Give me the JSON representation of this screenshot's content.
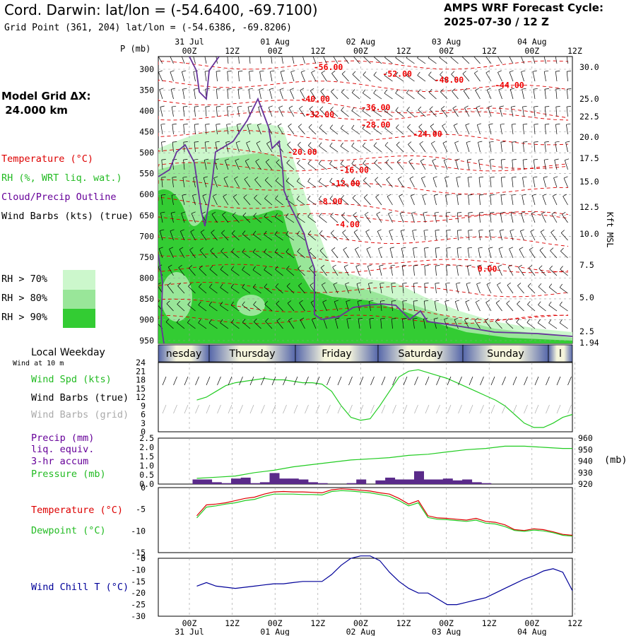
{
  "header": {
    "title": "Cord. Darwin:  lat/lon = (-54.6400, -69.7100)",
    "grid_point": "Grid Point (361, 204) lat/lon = (-54.6386, -69.8206)",
    "cycle_line1": "AMPS WRF Forecast Cycle:",
    "cycle_line2": "2025-07-30 / 12  Z",
    "model_grid": "Model Grid ΔX:",
    "model_dx": " 24.000 km"
  },
  "legend": {
    "temperature": "Temperature (°C)",
    "rh": "RH (%, WRT liq. wat.)",
    "cloud": "Cloud/Precip Outline",
    "wind": "Wind Barbs (kts) (true)",
    "rh70": "RH > 70%",
    "rh80": "RH > 80%",
    "rh90": "RH > 90%",
    "colors": {
      "rh70": "#ccf7cc",
      "rh80": "#99e699",
      "rh90": "#33cc33"
    }
  },
  "panels": {
    "local_weekday": "Local Weekday",
    "wind_at_10m": "Wind at 10 m",
    "wind_spd": "Wind Spd (kts)",
    "wind_barbs_true": "Wind Barbs (true)",
    "wind_barbs_grid": "Wind Barbs (grid)",
    "precip": "Precip (mm)",
    "liq": "liq. equiv.",
    "accum": "3-hr accum",
    "pressure": "Pressure (mb)",
    "mb": "(mb)",
    "temperature": "Temperature (°C)",
    "dewpoint": "Dewpoint (°C)",
    "windchill": "Wind Chill T (°C)",
    "p_axis_label": "P (mb)",
    "kft_label": "Kft MSL"
  },
  "chart_data": [
    {
      "type": "heatmap",
      "time_ticks": [
        "00Z",
        "12Z",
        "00Z",
        "12Z",
        "00Z",
        "12Z",
        "00Z",
        "12Z",
        "00Z",
        "12Z"
      ],
      "date_ticks": [
        "31 Jul",
        "01 Aug",
        "02 Aug",
        "03 Aug",
        "04 Aug"
      ],
      "pressure_ticks": [
        300,
        350,
        400,
        450,
        500,
        550,
        600,
        650,
        700,
        750,
        800,
        850,
        900,
        950
      ],
      "kft_ticks": [
        "30.0",
        "25.0",
        "22.5",
        "20.0",
        "17.5",
        "15.0",
        "12.5",
        "10.0",
        "7.5",
        "5.0",
        "2.5",
        "1.94"
      ],
      "temperature_labels": [
        {
          "label": "-56.00",
          "t": 36,
          "p": 302
        },
        {
          "label": "-52.00",
          "t": 52,
          "p": 318
        },
        {
          "label": "-48.00",
          "t": 64,
          "p": 332
        },
        {
          "label": "-44.00",
          "t": 78,
          "p": 345
        },
        {
          "label": "-40.00",
          "t": 33,
          "p": 378
        },
        {
          "label": "-36.00",
          "t": 47,
          "p": 398
        },
        {
          "label": "-32.00",
          "t": 34,
          "p": 415
        },
        {
          "label": "-28.00",
          "t": 47,
          "p": 440
        },
        {
          "label": "-24.00",
          "t": 59,
          "p": 462
        },
        {
          "label": "-20.00",
          "t": 30,
          "p": 505
        },
        {
          "label": "-16.00",
          "t": 42,
          "p": 548
        },
        {
          "label": "-12.00",
          "t": 40,
          "p": 580
        },
        {
          "label": "-8.00",
          "t": 37,
          "p": 623
        },
        {
          "label": "-4.00",
          "t": 41,
          "p": 678
        },
        {
          "label": "0.00",
          "t": 74,
          "p": 785
        }
      ]
    },
    {
      "type": "line",
      "title": "Wind Spd (kts)",
      "ylim": [
        0,
        24
      ],
      "yticks": [
        0,
        3,
        6,
        9,
        12,
        15,
        18,
        21,
        24
      ],
      "series": [
        {
          "name": "Wind Spd (kts)",
          "color": "#22cc22",
          "x": [
            0,
            3,
            6,
            9,
            12,
            15,
            18,
            21,
            24,
            27,
            30,
            33,
            36,
            39,
            42,
            45,
            48,
            51,
            54,
            57,
            60,
            63,
            66,
            69,
            72,
            75,
            78,
            81,
            84,
            87,
            90,
            93,
            96,
            99,
            102,
            105,
            108,
            111,
            114,
            117
          ],
          "y": [
            11,
            12,
            14,
            16,
            17,
            17.5,
            18,
            18.5,
            18,
            18,
            17.5,
            17,
            17,
            16.5,
            14,
            9,
            5,
            4,
            4.5,
            9,
            14,
            19,
            21,
            21.5,
            20.5,
            19.5,
            18.5,
            17,
            15.5,
            14,
            12.5,
            11,
            9,
            6,
            3,
            1.5,
            1.5,
            3,
            5,
            6
          ]
        }
      ]
    },
    {
      "type": "bar",
      "title": "Precip (mm) / Pressure (mb)",
      "ylim": [
        0,
        2.5
      ],
      "yticks": [
        0.0,
        0.5,
        1.0,
        1.5,
        2.0,
        2.5
      ],
      "y2ticks": [
        920,
        930,
        940,
        950,
        960
      ],
      "precip_x": [
        0,
        3,
        6,
        9,
        12,
        15,
        18,
        21,
        24,
        27,
        30,
        33,
        36,
        39,
        42,
        45,
        48,
        51,
        54,
        57,
        60,
        63,
        66,
        69,
        72,
        75,
        78,
        81,
        84,
        87,
        90,
        93,
        96,
        99,
        102,
        105,
        108,
        111,
        114,
        117
      ],
      "precip": [
        0.25,
        0.25,
        0.1,
        0.05,
        0.3,
        0.35,
        0.05,
        0.1,
        0.6,
        0.3,
        0.3,
        0.25,
        0.1,
        0.05,
        0.0,
        0.0,
        0.05,
        0.25,
        0.0,
        0.2,
        0.35,
        0.25,
        0.25,
        0.7,
        0.25,
        0.25,
        0.3,
        0.2,
        0.25,
        0.1,
        0.05,
        0.0,
        0.0,
        0.0,
        0.0,
        0.0,
        0.0,
        0.0,
        0.0,
        0.0
      ],
      "pressure_x": [
        0,
        6,
        12,
        18,
        24,
        30,
        36,
        42,
        48,
        54,
        60,
        66,
        72,
        78,
        84,
        90,
        96,
        102,
        108,
        114,
        117
      ],
      "pressure": [
        925,
        926,
        927,
        930,
        932,
        935,
        937,
        939,
        941,
        942,
        943,
        945,
        946,
        948,
        950,
        951,
        953,
        953,
        952,
        951,
        951
      ]
    },
    {
      "type": "line",
      "title": "Temperature / Dewpoint (°C)",
      "ylim": [
        -15,
        0
      ],
      "yticks": [
        -15,
        -10,
        -5
      ],
      "series": [
        {
          "name": "Temperature (°C)",
          "color": "#dd0000",
          "x": [
            0,
            3,
            6,
            9,
            12,
            15,
            18,
            21,
            24,
            27,
            30,
            33,
            36,
            39,
            42,
            45,
            48,
            51,
            54,
            57,
            60,
            63,
            66,
            69,
            72,
            75,
            78,
            81,
            84,
            87,
            90,
            93,
            96,
            99,
            102,
            105,
            108,
            111,
            114,
            117
          ],
          "y": [
            -6.5,
            -4,
            -3.8,
            -3.5,
            -3,
            -2.5,
            -2.2,
            -1.5,
            -1,
            -0.9,
            -1,
            -1,
            -1.1,
            -1.2,
            -0.5,
            -0.3,
            -0.4,
            -0.6,
            -0.8,
            -1.2,
            -1.5,
            -2.5,
            -3.8,
            -3,
            -6.5,
            -7.0,
            -7.1,
            -7.3,
            -7.5,
            -7.1,
            -7.8,
            -8,
            -8.6,
            -9.7,
            -9.9,
            -9.5,
            -9.7,
            -10.2,
            -10.8,
            -11
          ]
        },
        {
          "name": "Dewpoint (°C)",
          "color": "#22cc22",
          "x": [
            0,
            3,
            6,
            9,
            12,
            15,
            18,
            21,
            24,
            27,
            30,
            33,
            36,
            39,
            42,
            45,
            48,
            51,
            54,
            57,
            60,
            63,
            66,
            69,
            72,
            75,
            78,
            81,
            84,
            87,
            90,
            93,
            96,
            99,
            102,
            105,
            108,
            111,
            114,
            117
          ],
          "y": [
            -7,
            -4.5,
            -4.2,
            -3.8,
            -3.5,
            -3,
            -2.7,
            -2,
            -1.5,
            -1.5,
            -1.5,
            -1.6,
            -1.6,
            -1.7,
            -0.9,
            -0.7,
            -0.8,
            -1,
            -1.2,
            -1.6,
            -2,
            -3,
            -4.2,
            -3.5,
            -6.9,
            -7.3,
            -7.4,
            -7.6,
            -7.8,
            -7.5,
            -8.2,
            -8.4,
            -9,
            -9.9,
            -10.1,
            -9.8,
            -10,
            -10.4,
            -11,
            -11.2
          ]
        }
      ]
    },
    {
      "type": "line",
      "title": "Wind Chill T (°C)",
      "ylim": [
        -30,
        -5
      ],
      "yticks": [
        -5,
        -10,
        -15,
        -20,
        -25,
        -30
      ],
      "series": [
        {
          "name": "Wind Chill T (°C)",
          "color": "#000099",
          "x": [
            0,
            3,
            6,
            9,
            12,
            15,
            18,
            21,
            24,
            27,
            30,
            33,
            36,
            39,
            42,
            45,
            48,
            51,
            54,
            57,
            60,
            63,
            66,
            69,
            72,
            75,
            78,
            81,
            84,
            87,
            90,
            93,
            96,
            99,
            102,
            105,
            108,
            111,
            114,
            117
          ],
          "y": [
            -17,
            -15.5,
            -17,
            -17.5,
            -18,
            -17.5,
            -17,
            -16.5,
            -16,
            -16,
            -15.5,
            -15,
            -15,
            -15,
            -12,
            -8,
            -5,
            -4,
            -4,
            -6,
            -11,
            -15,
            -18,
            -20,
            -20,
            -22.5,
            -25,
            -25,
            -24,
            -23,
            -22,
            -20,
            -18,
            -16,
            -14,
            -12.5,
            -10.5,
            -9.5,
            -11,
            -19
          ]
        }
      ]
    }
  ],
  "weekday_bar": {
    "days": [
      "nesday",
      "Thursday",
      "Friday",
      "Saturday",
      "Sunday",
      "l"
    ]
  },
  "axis_ticks": {
    "ws_ticks": [
      "0",
      "3",
      "6",
      "9",
      "12",
      "15",
      "18",
      "21",
      "24"
    ],
    "precip_ticks": [
      "0.0",
      "0.5",
      "1.0",
      "1.5",
      "2.0",
      "2.5"
    ],
    "pres_ticks": [
      "920",
      "930",
      "940",
      "950",
      "960"
    ],
    "temp_ticks": [
      "-15",
      "-10",
      "-5"
    ],
    "wc_ticks": [
      "-5",
      "-10",
      "-15",
      "-20",
      "-25",
      "-30"
    ],
    "zero_top": "0",
    "wc_top": "0"
  }
}
